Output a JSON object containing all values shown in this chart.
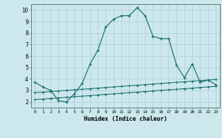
{
  "xlabel": "Humidex (Indice chaleur)",
  "xlim": [
    -0.5,
    23.5
  ],
  "ylim": [
    1.5,
    10.5
  ],
  "xticks": [
    0,
    1,
    2,
    3,
    4,
    5,
    6,
    7,
    8,
    9,
    10,
    11,
    12,
    13,
    14,
    15,
    16,
    17,
    18,
    19,
    20,
    21,
    22,
    23
  ],
  "yticks": [
    2,
    3,
    4,
    5,
    6,
    7,
    8,
    9,
    10
  ],
  "bg_color": "#cce8ec",
  "grid_color": "#aacdd4",
  "line_color": "#1a7070",
  "line1_x": [
    0,
    1,
    2,
    3,
    4,
    5,
    6,
    7,
    8,
    9,
    10,
    11,
    12,
    13,
    14,
    15,
    16,
    17,
    18,
    19,
    20,
    21,
    22,
    23
  ],
  "line1_y": [
    3.7,
    3.3,
    3.0,
    2.1,
    2.0,
    2.7,
    3.6,
    5.3,
    6.5,
    8.5,
    9.2,
    9.5,
    9.5,
    10.2,
    9.5,
    7.7,
    7.5,
    7.5,
    5.2,
    4.1,
    5.3,
    3.7,
    3.9,
    3.5
  ],
  "line2_x": [
    0,
    1,
    2,
    3,
    4,
    5,
    6,
    7,
    8,
    9,
    10,
    11,
    12,
    13,
    14,
    15,
    16,
    17,
    18,
    19,
    20,
    21,
    22,
    23
  ],
  "line2_y": [
    2.8,
    2.85,
    2.9,
    2.95,
    3.0,
    3.05,
    3.1,
    3.15,
    3.2,
    3.25,
    3.3,
    3.35,
    3.4,
    3.45,
    3.5,
    3.55,
    3.6,
    3.65,
    3.7,
    3.75,
    3.8,
    3.85,
    3.9,
    3.95
  ],
  "line3_x": [
    0,
    1,
    2,
    3,
    4,
    5,
    6,
    7,
    8,
    9,
    10,
    11,
    12,
    13,
    14,
    15,
    16,
    17,
    18,
    19,
    20,
    21,
    22,
    23
  ],
  "line3_y": [
    2.2,
    2.25,
    2.3,
    2.35,
    2.4,
    2.45,
    2.5,
    2.55,
    2.6,
    2.65,
    2.7,
    2.75,
    2.8,
    2.85,
    2.9,
    2.95,
    3.0,
    3.05,
    3.1,
    3.15,
    3.2,
    3.25,
    3.3,
    3.35
  ]
}
